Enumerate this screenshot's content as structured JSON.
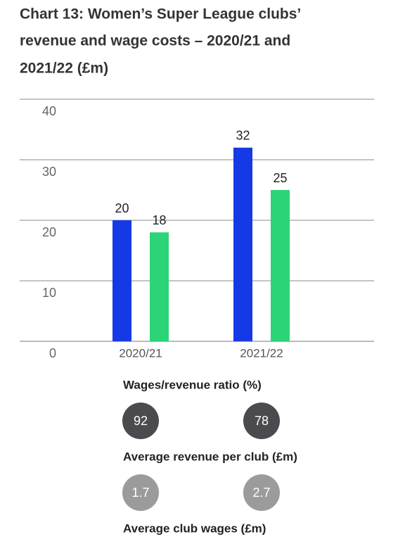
{
  "chart_data": {
    "type": "bar",
    "title": [
      "Chart 13: Women’s Super League clubs’",
      "revenue and wage costs – 2020/21 and",
      "2021/22 (£m)"
    ],
    "categories": [
      "2020/21",
      "2021/22"
    ],
    "series": [
      {
        "color": "#1639e6",
        "values": [
          20,
          32
        ]
      },
      {
        "color": "#2ad477",
        "values": [
          18,
          25
        ]
      }
    ],
    "ylim": [
      0,
      40
    ],
    "yticks": [
      0,
      10,
      20,
      30,
      40
    ],
    "grid": true
  },
  "stats": [
    {
      "label": "Wages/revenue ratio (%)",
      "color": "#4a4a4f",
      "values": [
        92,
        78
      ]
    },
    {
      "label": "Average revenue per club (£m)",
      "color": "#9b9b9b",
      "values": [
        1.7,
        2.7
      ]
    },
    {
      "label": "Average club wages (£m)"
    }
  ]
}
